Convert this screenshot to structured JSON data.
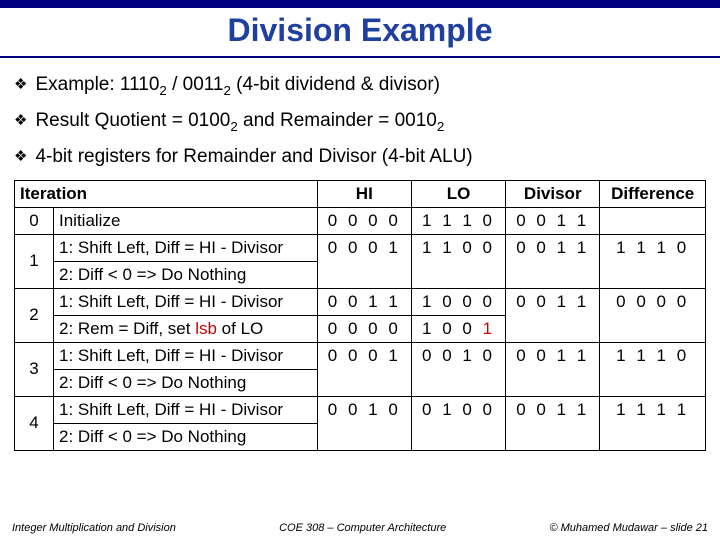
{
  "title": "Division Example",
  "bullets": {
    "b1_pre": "Example: 1110",
    "b1_mid1": " / 0011",
    "b1_post": " (4-bit dividend & divisor)",
    "b2_pre": "Result Quotient = 0100",
    "b2_mid": " and Remainder = 0010",
    "b3": "4-bit registers for Remainder and Divisor (4-bit ALU)",
    "sub2": "2"
  },
  "headers": {
    "iteration": "Iteration",
    "hi": "HI",
    "lo": "LO",
    "divisor": "Divisor",
    "difference": "Difference"
  },
  "rows": {
    "r0_i": "0",
    "r0_d": "Initialize",
    "r0_hi": "0 0 0 0",
    "r0_lo": "1 1 1 0",
    "r0_dv": "0 0 1 1",
    "r0_df": "",
    "r1_i": "1",
    "r1a_d": "1: Shift Left, Diff = HI - Divisor",
    "r1a_hi": "0 0 0 1",
    "r1a_lo": "1 1 0 0",
    "r1a_dv": "0 0 1 1",
    "r1a_df": "1 1 1 0",
    "r1b_d": "2: Diff < 0 => Do Nothing",
    "r2_i": "2",
    "r2a_d": "1: Shift Left, Diff = HI - Divisor",
    "r2a_hi": "0 0 1 1",
    "r2a_lo": "1 0 0 0",
    "r2a_dv": "0 0 1 1",
    "r2a_df": "0 0 0 0",
    "r2b_d_pre": "2: Rem = Diff, set ",
    "r2b_d_lsb": "lsb",
    "r2b_d_post": " of LO",
    "r2b_hi": "0 0 0 0",
    "r2b_lo_pre": "1 0 0 ",
    "r2b_lo_last": "1",
    "r3_i": "3",
    "r3a_d": "1: Shift Left, Diff = HI - Divisor",
    "r3a_hi": "0 0 0 1",
    "r3a_lo": "0 0 1 0",
    "r3a_dv": "0 0 1 1",
    "r3a_df": "1 1 1 0",
    "r3b_d": "2: Diff < 0 => Do Nothing",
    "r4_i": "4",
    "r4a_d": "1: Shift Left, Diff = HI - Divisor",
    "r4a_hi": "0 0 1 0",
    "r4a_lo": "0 1 0 0",
    "r4a_dv": "0 0 1 1",
    "r4a_df": "1 1 1 1",
    "r4b_d": "2: Diff < 0 => Do Nothing"
  },
  "footer": {
    "left": "Integer Multiplication and Division",
    "center": "COE 308 – Computer Architecture",
    "right": "© Muhamed Mudawar – slide 21"
  }
}
